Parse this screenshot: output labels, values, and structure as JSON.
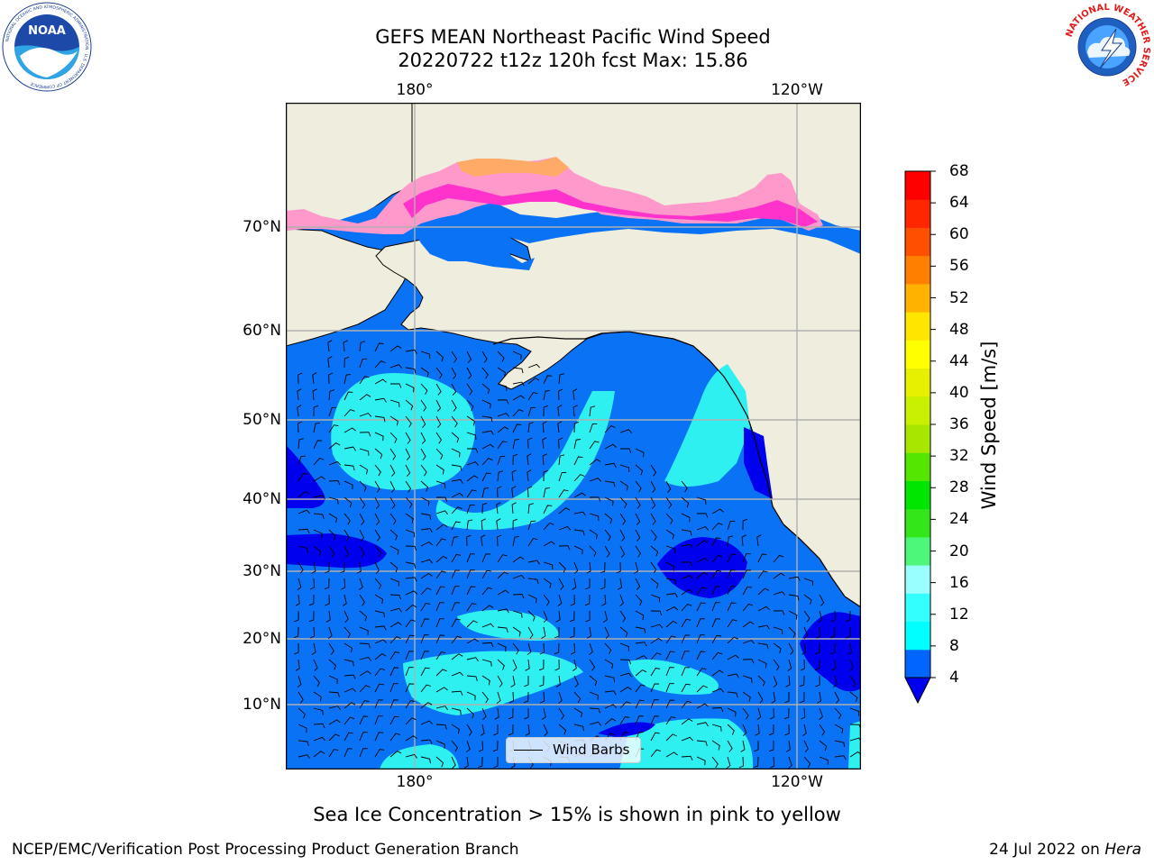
{
  "title": {
    "line1": "GEFS MEAN Northeast Pacific Wind Speed",
    "line2": "20220722 t12z 120h fcst   Max: 15.86"
  },
  "logos": {
    "noaa": "NOAA",
    "noaa_ring": "NATIONAL OCEANIC AND ATMOSPHERIC ADMINISTRATION · U.S. DEPARTMENT OF COMMERCE",
    "nws_ring": "NATIONAL WEATHER SERVICE"
  },
  "axes": {
    "lon_top": [
      "180°",
      "120°W"
    ],
    "lon_bottom": [
      "180°",
      "120°W"
    ],
    "lat": [
      "70°N",
      "60°N",
      "50°N",
      "40°N",
      "30°N",
      "20°N",
      "10°N"
    ]
  },
  "colorbar": {
    "label": "Wind Speed [m/s]",
    "ticks": [
      "68",
      "64",
      "60",
      "56",
      "52",
      "48",
      "44",
      "40",
      "36",
      "32",
      "28",
      "24",
      "20",
      "16",
      "12",
      "8",
      "4"
    ],
    "colors_low_to_high": [
      "#0066ff",
      "#00ffff",
      "#33ffff",
      "#99ffff",
      "#4df77a",
      "#33e61a",
      "#00e600",
      "#55e600",
      "#a8e600",
      "#c8f000",
      "#e6f000",
      "#ffff00",
      "#ffe600",
      "#ffb300",
      "#ff8000",
      "#ff5000",
      "#ff2600",
      "#ff0000"
    ],
    "under_color": "#0000ee"
  },
  "legend": {
    "label": "Wind Barbs"
  },
  "map_colors": {
    "land": "#efedde",
    "ocean_low": "#0000ee",
    "ocean_4_8": "#0a72f5",
    "ocean_8_12": "#2ff0f0",
    "sea_ice": [
      "#ff33cc",
      "#ff99cc",
      "#ffaa55"
    ]
  },
  "footnote": "Sea Ice Concentration > 15% is shown in pink to yellow",
  "footer": {
    "left": "NCEP/EMC/Verification Post Processing Product Generation Branch",
    "right_date": "24 Jul 2022 on ",
    "right_host": "Hera"
  }
}
